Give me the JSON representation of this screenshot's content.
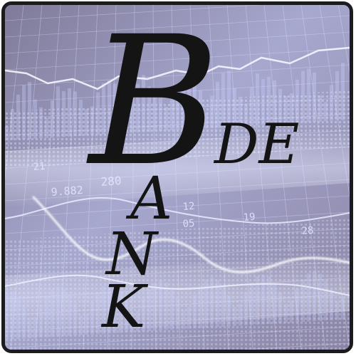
{
  "logo": {
    "big_letter": "B",
    "suffix": "DE",
    "vertical_letters": [
      "A",
      "N",
      "K"
    ]
  },
  "ticker_numbers": [
    "21",
    "280",
    "9.882",
    "12",
    "05",
    "19",
    "28"
  ],
  "colors": {
    "frame": "#1c1c1e",
    "grid_line": "#dfe3ff",
    "chart_glow": "#c8d0ff",
    "logo_ink": "#141414"
  }
}
